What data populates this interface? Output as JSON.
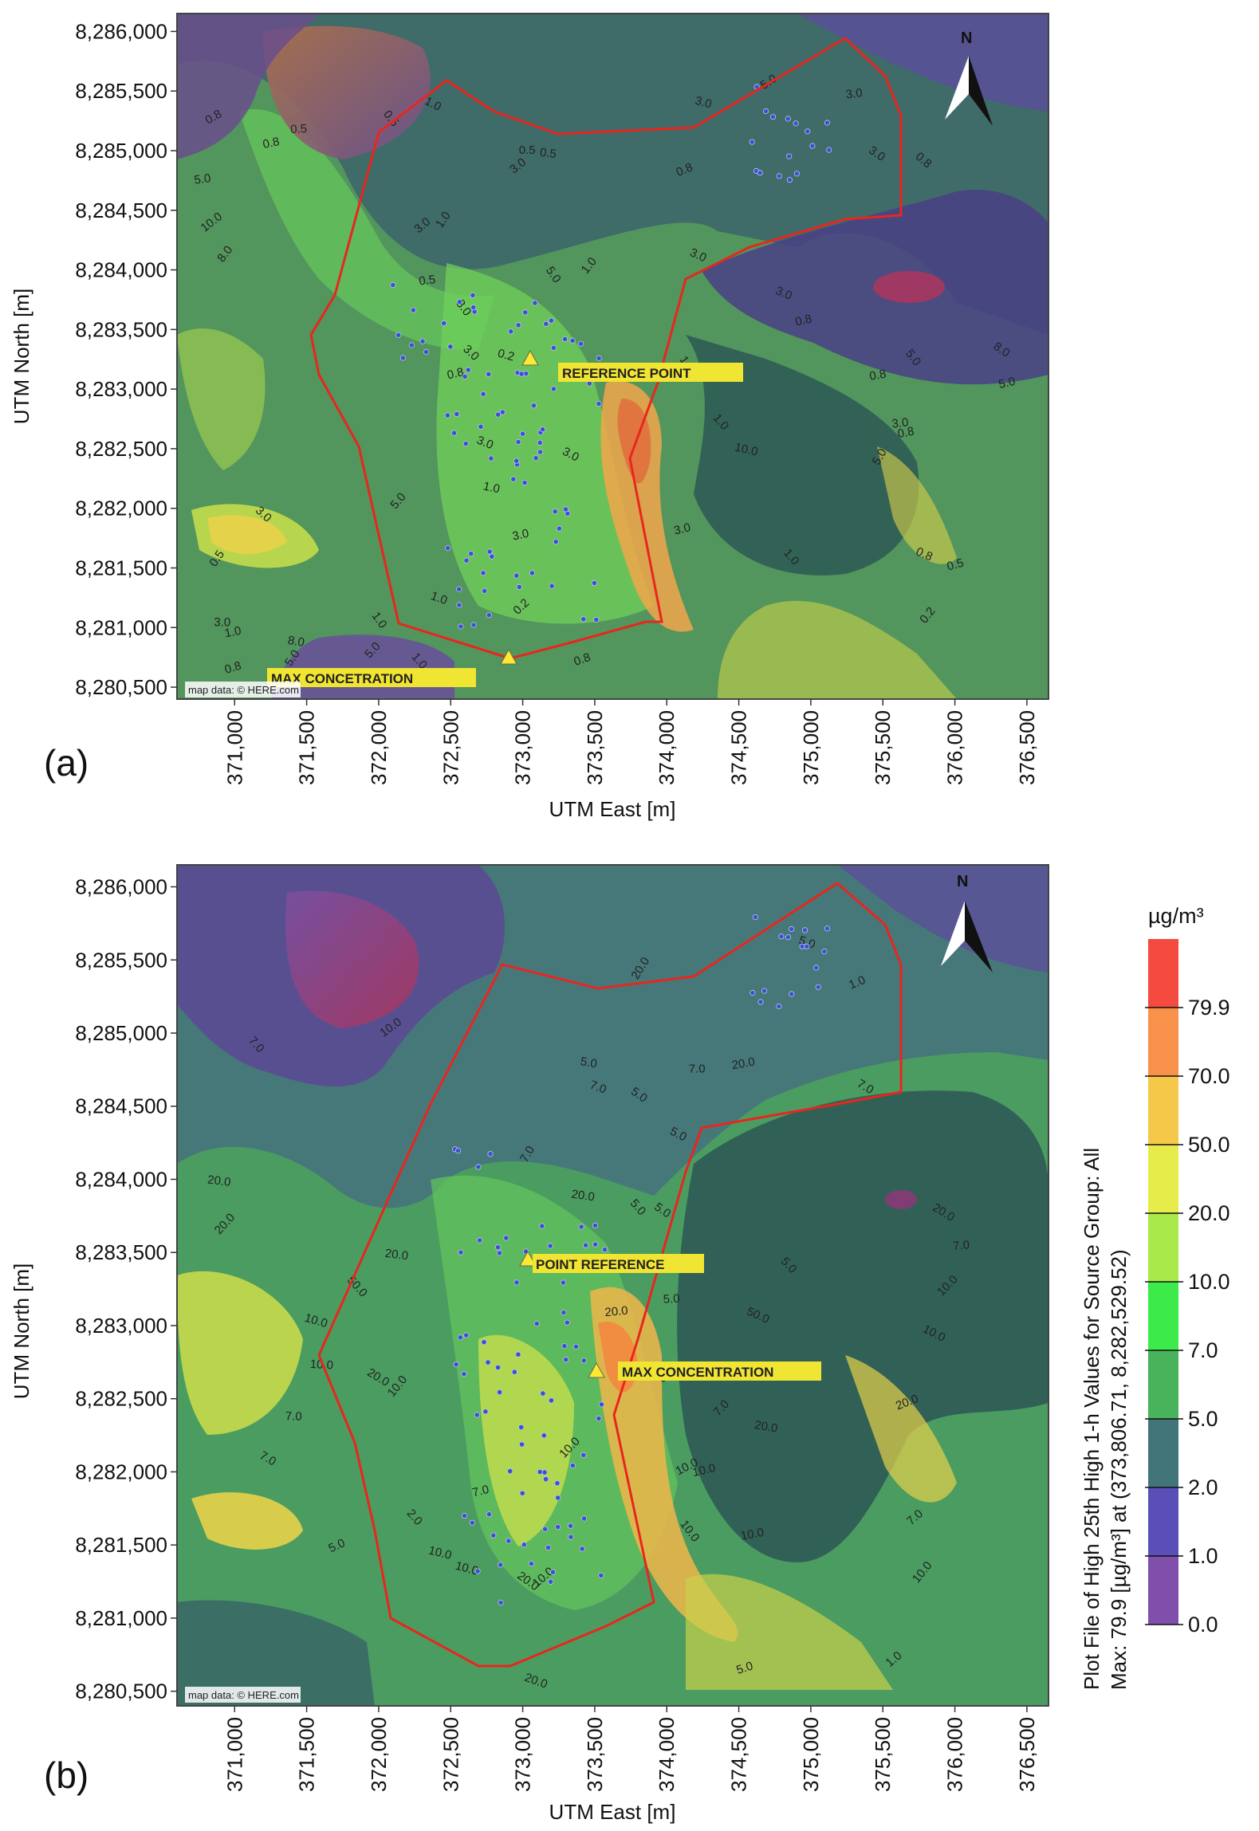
{
  "panels": [
    {
      "id": "a",
      "label": "(a)",
      "xlabel": "UTM East [m]",
      "ylabel": "UTM North [m]",
      "x_ticks": [
        "371,000",
        "371,500",
        "372,000",
        "372,500",
        "373,000",
        "373,500",
        "374,000",
        "374,500",
        "375,000",
        "375,500",
        "376,000",
        "376,500"
      ],
      "y_ticks": [
        "8,286,000",
        "8,285,500",
        "8,285,000",
        "8,284,500",
        "8,284,000",
        "8,283,500",
        "8,283,000",
        "8,282,500",
        "8,282,000",
        "8,281,500",
        "8,281,000",
        "8,280,500"
      ],
      "attribution": "map data: © HERE.com",
      "north_label": "N",
      "annotations": [
        {
          "id": "reference",
          "text": "REFERENCE POINT",
          "x": 373030,
          "y": 8283270
        },
        {
          "id": "max",
          "text": "MAX CONCETRATION",
          "x": 372880,
          "y": 8280700
        }
      ],
      "contour_labels": [
        "0.2",
        "0.2",
        "0.2",
        "0.5",
        "0.5",
        "1.0",
        "1.0",
        "0.8",
        "0.5",
        "1.0",
        "0.8",
        "0.8",
        "1.0",
        "0.5",
        "3.0",
        "3.0",
        "5.0",
        "1.0",
        "0.8",
        "1.0",
        "3.0",
        "3.0",
        "1.0",
        "0.8",
        "1.0",
        "0.8",
        "3.0",
        "5.0",
        "10.0",
        "3.0",
        "5.0",
        "8.0",
        "3.0",
        "5.0",
        "10.0",
        "5.0",
        "8.0",
        "8.0",
        "5.0",
        "3.0",
        "1.0",
        "0.8",
        "0.5",
        "0.8",
        "5.0",
        "3.0",
        "1.0",
        "3.0",
        "0.8",
        "0.5",
        "3.0",
        "5.0",
        "3.0",
        "3.0",
        "3.0",
        "0.8",
        "5.0",
        "8.0",
        "3.0",
        "0.5",
        "1.0",
        "0.8"
      ]
    },
    {
      "id": "b",
      "label": "(b)",
      "xlabel": "UTM East [m]",
      "ylabel": "UTM North [m]",
      "x_ticks": [
        "371,000",
        "371,500",
        "372,000",
        "372,500",
        "373,000",
        "373,500",
        "374,000",
        "374,500",
        "375,000",
        "375,500",
        "376,000",
        "376,500"
      ],
      "y_ticks": [
        "8,286,000",
        "8,285,500",
        "8,285,000",
        "8,284,500",
        "8,284,000",
        "8,283,500",
        "8,283,000",
        "8,282,500",
        "8,282,000",
        "8,281,500",
        "8,281,000",
        "8,280,500"
      ],
      "attribution": "map data: © HERE.com",
      "north_label": "N",
      "annotations": [
        {
          "id": "reference",
          "text": "POINT REFERENCE",
          "x": 372980,
          "y": 8283360
        },
        {
          "id": "max",
          "text": "MAX CONCENTRATION",
          "x": 373440,
          "y": 8282600
        }
      ],
      "contour_labels": [
        "1.0",
        "5.0",
        "7.0",
        "1.0",
        "5.0",
        "10.0",
        "7.0",
        "2.0",
        "7.0",
        "10.0",
        "7.0",
        "5.0",
        "20.0",
        "10.0",
        "5.0",
        "20.0",
        "10.0",
        "5.0",
        "20.0",
        "10.0",
        "7.0",
        "5.0",
        "20.0",
        "10.0",
        "10.0",
        "7.0",
        "5.0",
        "50.0",
        "10.0",
        "20.0",
        "50.0",
        "10.0",
        "7.0",
        "20.0",
        "20.0",
        "10.0",
        "7.0",
        "5.0",
        "20.0",
        "10.0",
        "20.0",
        "10.0",
        "20.0",
        "5.0",
        "20.0",
        "10.0",
        "7.0",
        "5.0",
        "10.0",
        "20.0",
        "7.0",
        "20.0",
        "10.0",
        "7.0",
        "5.0"
      ]
    }
  ],
  "legend": {
    "unit": "µg/m³",
    "title_line1": "Plot File of High 25th High 1-h Values for Source Group: All",
    "title_line2": "Max: 79.9 [µg/m³] at (373,806.71, 8,282,529.52)",
    "ticks": [
      "79.9",
      "70.0",
      "50.0",
      "20.0",
      "10.0",
      "7.0",
      "5.0",
      "2.0",
      "1.0",
      "0.0"
    ],
    "colors": [
      "#f44a3f",
      "#f8924a",
      "#f6c84a",
      "#e6ec4a",
      "#a9ea4a",
      "#3cea4a",
      "#48b35a",
      "#42757a",
      "#5a4fb8",
      "#7f4fab"
    ]
  }
}
